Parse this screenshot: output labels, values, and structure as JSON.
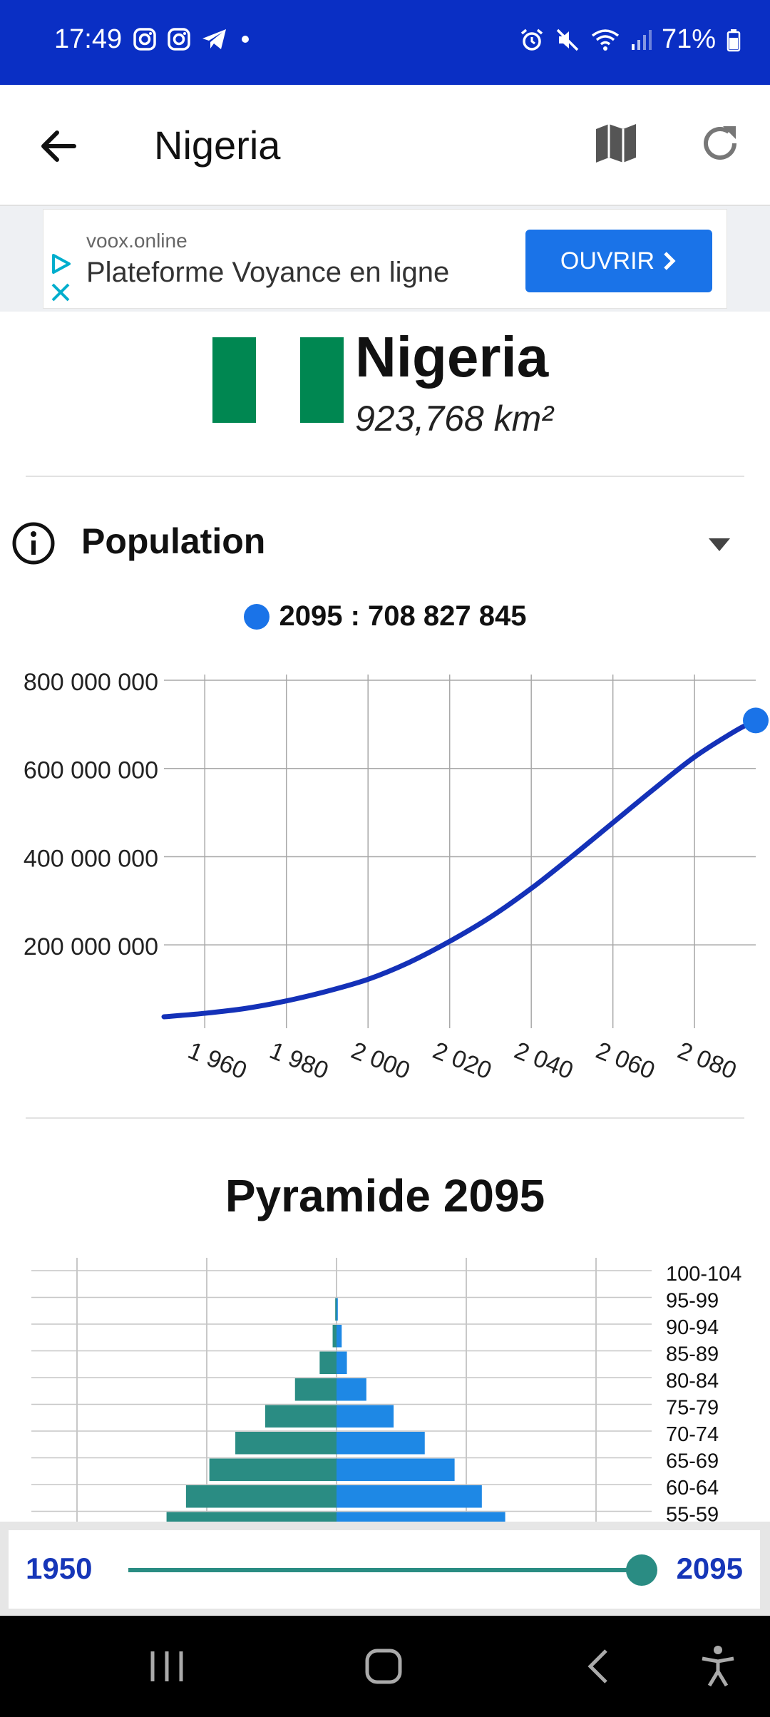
{
  "status_bar": {
    "time": "17:49",
    "battery": "71%"
  },
  "app_bar": {
    "title": "Nigeria"
  },
  "ad": {
    "domain": "voox.online",
    "headline": "Plateforme Voyance en ligne",
    "cta": "OUVRIR"
  },
  "country": {
    "name": "Nigeria",
    "area": "923,768 km²",
    "flag_colors": [
      "#008751",
      "#ffffff",
      "#008751"
    ]
  },
  "population": {
    "title": "Population",
    "legend": "2095 : 708 827 845",
    "chart_data": {
      "type": "line",
      "x": [
        1950,
        1960,
        1970,
        1980,
        1990,
        2000,
        2010,
        2020,
        2030,
        2040,
        2050,
        2060,
        2070,
        2080,
        2090,
        2095
      ],
      "series": [
        {
          "values": [
            37000000,
            45000000,
            56000000,
            73000000,
            95000000,
            122000000,
            160000000,
            208000000,
            263000000,
            328000000,
            401000000,
            477000000,
            553000000,
            626000000,
            685000000,
            708827845
          ]
        }
      ],
      "color": "#1431b8",
      "highlight_point": {
        "x": 2095,
        "y": 708827845,
        "color": "#1a73e8"
      },
      "xlim": [
        1950,
        2095
      ],
      "ylim": [
        37000000,
        800000000
      ],
      "x_tick_labels": [
        "1 960",
        "1 980",
        "2 000",
        "2 020",
        "2 040",
        "2 060",
        "2 080"
      ],
      "x_tick_values": [
        1960,
        1980,
        2000,
        2020,
        2040,
        2060,
        2080
      ],
      "y_tick_labels": [
        "800 000 000",
        "600 000 000",
        "400 000 000",
        "200 000 000"
      ],
      "y_tick_values": [
        800000000,
        600000000,
        400000000,
        200000000
      ],
      "grid": true
    }
  },
  "pyramid": {
    "title": "Pyramide 2095",
    "chart_data": {
      "type": "bar",
      "orientation": "horizontal",
      "categories": [
        "100-104",
        "95-99",
        "90-94",
        "85-89",
        "80-84",
        "75-79",
        "70-74",
        "65-69",
        "60-64",
        "55-59"
      ],
      "series": [
        {
          "values": [
            0,
            0.1,
            0.3,
            1.3,
            3.2,
            5.5,
            7.8,
            9.8,
            11.6,
            13.1
          ],
          "color": "#2a8c83"
        },
        {
          "values": [
            0,
            0.1,
            0.4,
            0.8,
            2.3,
            4.4,
            6.8,
            9.1,
            11.2,
            13.0
          ],
          "color": "#1e88e5"
        }
      ]
    }
  },
  "timeline_slider": {
    "min": "1950",
    "max": "2095",
    "value_fraction": 1.0
  }
}
